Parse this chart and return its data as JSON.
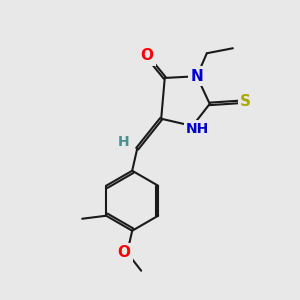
{
  "background_color": "#e8e8e8",
  "bond_color": "#1a1a1a",
  "atom_colors": {
    "O": "#ff0000",
    "N": "#0000cc",
    "S": "#aaaa00",
    "H_label": "#4a9090",
    "C": "#1a1a1a"
  },
  "figsize": [
    3.0,
    3.0
  ],
  "dpi": 100,
  "lw": 1.5,
  "font_bg": "#e8e8e8"
}
